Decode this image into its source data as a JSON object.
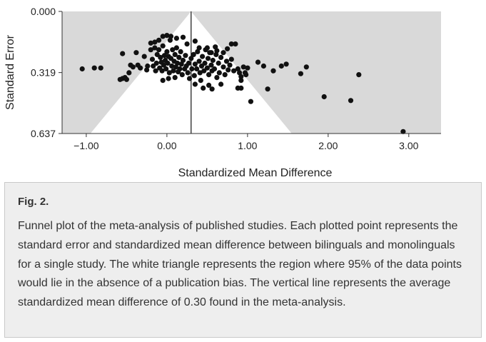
{
  "chart_data": {
    "type": "scatter",
    "subtype": "funnel-plot",
    "xlabel": "Standardized Mean Difference",
    "ylabel": "Standard Error",
    "xlim": [
      -1.3,
      3.4
    ],
    "ylim": [
      0.0,
      0.637
    ],
    "y_inverted": true,
    "x_ticks": [
      "−1.00",
      "0.00",
      "1.00",
      "2.00",
      "3.00"
    ],
    "x_tick_values": [
      -1.0,
      0.0,
      1.0,
      2.0,
      3.0
    ],
    "y_ticks": [
      "0.000",
      "0.319",
      "0.637"
    ],
    "y_tick_values": [
      0.0,
      0.319,
      0.637
    ],
    "mean_difference": 0.3,
    "funnel_multiplier": 1.96,
    "colors": {
      "background": "#d9d9d9",
      "funnel": "#ffffff",
      "points": "#111111",
      "axis": "#333333"
    },
    "points": [
      {
        "x": -1.05,
        "y": 0.3
      },
      {
        "x": -0.9,
        "y": 0.295
      },
      {
        "x": -0.82,
        "y": 0.295
      },
      {
        "x": -0.58,
        "y": 0.355
      },
      {
        "x": -0.55,
        "y": 0.35
      },
      {
        "x": -0.52,
        "y": 0.345
      },
      {
        "x": -0.55,
        "y": 0.22
      },
      {
        "x": -0.38,
        "y": 0.215
      },
      {
        "x": -0.45,
        "y": 0.28
      },
      {
        "x": -0.42,
        "y": 0.29
      },
      {
        "x": -0.36,
        "y": 0.28
      },
      {
        "x": -0.33,
        "y": 0.295
      },
      {
        "x": -0.28,
        "y": 0.235
      },
      {
        "x": -0.25,
        "y": 0.305
      },
      {
        "x": -0.24,
        "y": 0.285
      },
      {
        "x": -0.2,
        "y": 0.2
      },
      {
        "x": -0.18,
        "y": 0.25
      },
      {
        "x": -0.17,
        "y": 0.285
      },
      {
        "x": -0.15,
        "y": 0.19
      },
      {
        "x": -0.14,
        "y": 0.31
      },
      {
        "x": -0.13,
        "y": 0.27
      },
      {
        "x": -0.12,
        "y": 0.225
      },
      {
        "x": -0.1,
        "y": 0.2
      },
      {
        "x": -0.09,
        "y": 0.295
      },
      {
        "x": -0.08,
        "y": 0.24
      },
      {
        "x": -0.07,
        "y": 0.265
      },
      {
        "x": -0.06,
        "y": 0.31
      },
      {
        "x": -0.05,
        "y": 0.18
      },
      {
        "x": -0.04,
        "y": 0.28
      },
      {
        "x": -0.03,
        "y": 0.23
      },
      {
        "x": -0.02,
        "y": 0.255
      },
      {
        "x": -0.01,
        "y": 0.3
      },
      {
        "x": 0.0,
        "y": 0.21
      },
      {
        "x": 0.01,
        "y": 0.27
      },
      {
        "x": 0.02,
        "y": 0.235
      },
      {
        "x": 0.03,
        "y": 0.32
      },
      {
        "x": 0.04,
        "y": 0.15
      },
      {
        "x": 0.05,
        "y": 0.245
      },
      {
        "x": 0.06,
        "y": 0.285
      },
      {
        "x": 0.07,
        "y": 0.2
      },
      {
        "x": 0.08,
        "y": 0.31
      },
      {
        "x": 0.09,
        "y": 0.26
      },
      {
        "x": 0.1,
        "y": 0.225
      },
      {
        "x": 0.11,
        "y": 0.29
      },
      {
        "x": 0.12,
        "y": 0.19
      },
      {
        "x": 0.13,
        "y": 0.27
      },
      {
        "x": 0.14,
        "y": 0.315
      },
      {
        "x": 0.15,
        "y": 0.24
      },
      {
        "x": 0.16,
        "y": 0.3
      },
      {
        "x": 0.17,
        "y": 0.21
      },
      {
        "x": 0.18,
        "y": 0.275
      },
      {
        "x": 0.19,
        "y": 0.33
      },
      {
        "x": 0.2,
        "y": 0.255
      },
      {
        "x": 0.22,
        "y": 0.3
      },
      {
        "x": 0.23,
        "y": 0.23
      },
      {
        "x": 0.24,
        "y": 0.285
      },
      {
        "x": 0.26,
        "y": 0.32
      },
      {
        "x": 0.27,
        "y": 0.27
      },
      {
        "x": 0.28,
        "y": 0.35
      },
      {
        "x": 0.3,
        "y": 0.245
      },
      {
        "x": 0.31,
        "y": 0.3
      },
      {
        "x": 0.33,
        "y": 0.225
      },
      {
        "x": 0.34,
        "y": 0.335
      },
      {
        "x": 0.35,
        "y": 0.275
      },
      {
        "x": 0.37,
        "y": 0.3
      },
      {
        "x": 0.38,
        "y": 0.21
      },
      {
        "x": 0.4,
        "y": 0.26
      },
      {
        "x": 0.41,
        "y": 0.32
      },
      {
        "x": 0.42,
        "y": 0.36
      },
      {
        "x": 0.43,
        "y": 0.285
      },
      {
        "x": 0.44,
        "y": 0.235
      },
      {
        "x": 0.46,
        "y": 0.31
      },
      {
        "x": 0.47,
        "y": 0.27
      },
      {
        "x": 0.48,
        "y": 0.2
      },
      {
        "x": 0.5,
        "y": 0.295
      },
      {
        "x": 0.51,
        "y": 0.245
      },
      {
        "x": 0.52,
        "y": 0.33
      },
      {
        "x": 0.53,
        "y": 0.215
      },
      {
        "x": 0.55,
        "y": 0.28
      },
      {
        "x": 0.56,
        "y": 0.31
      },
      {
        "x": 0.57,
        "y": 0.255
      },
      {
        "x": 0.59,
        "y": 0.3
      },
      {
        "x": 0.61,
        "y": 0.225
      },
      {
        "x": 0.62,
        "y": 0.345
      },
      {
        "x": 0.64,
        "y": 0.27
      },
      {
        "x": 0.65,
        "y": 0.32
      },
      {
        "x": 0.67,
        "y": 0.24
      },
      {
        "x": 0.7,
        "y": 0.29
      },
      {
        "x": 0.72,
        "y": 0.33
      },
      {
        "x": 0.74,
        "y": 0.26
      },
      {
        "x": 0.76,
        "y": 0.305
      },
      {
        "x": 0.78,
        "y": 0.28
      },
      {
        "x": 0.8,
        "y": 0.25
      },
      {
        "x": 0.83,
        "y": 0.31
      },
      {
        "x": 0.88,
        "y": 0.3
      },
      {
        "x": 0.9,
        "y": 0.32
      },
      {
        "x": 0.92,
        "y": 0.36
      },
      {
        "x": 0.95,
        "y": 0.29
      },
      {
        "x": 0.98,
        "y": 0.33
      },
      {
        "x": 1.0,
        "y": 0.295
      },
      {
        "x": 1.04,
        "y": 0.47
      },
      {
        "x": -0.5,
        "y": 0.355
      },
      {
        "x": -0.47,
        "y": 0.32
      },
      {
        "x": -0.05,
        "y": 0.36
      },
      {
        "x": 0.02,
        "y": 0.35
      },
      {
        "x": 0.1,
        "y": 0.345
      },
      {
        "x": 0.35,
        "y": 0.38
      },
      {
        "x": 0.45,
        "y": 0.4
      },
      {
        "x": 0.52,
        "y": 0.385
      },
      {
        "x": 0.56,
        "y": 0.405
      },
      {
        "x": 0.67,
        "y": 0.38
      },
      {
        "x": 0.88,
        "y": 0.4
      },
      {
        "x": 0.92,
        "y": 0.4
      },
      {
        "x": 0.92,
        "y": 0.34
      },
      {
        "x": 0.97,
        "y": 0.32
      },
      {
        "x": 0.8,
        "y": 0.17
      },
      {
        "x": 0.85,
        "y": 0.17
      },
      {
        "x": 0.6,
        "y": 0.185
      },
      {
        "x": 0.2,
        "y": 0.135
      },
      {
        "x": 0.12,
        "y": 0.14
      },
      {
        "x": 0.05,
        "y": 0.13
      },
      {
        "x": 0.0,
        "y": 0.125
      },
      {
        "x": -0.05,
        "y": 0.13
      },
      {
        "x": -0.1,
        "y": 0.15
      },
      {
        "x": -0.15,
        "y": 0.16
      },
      {
        "x": -0.2,
        "y": 0.165
      },
      {
        "x": 0.25,
        "y": 0.17
      },
      {
        "x": 0.35,
        "y": 0.155
      },
      {
        "x": 0.4,
        "y": 0.19
      },
      {
        "x": 0.5,
        "y": 0.19
      },
      {
        "x": 0.55,
        "y": 0.215
      },
      {
        "x": 0.62,
        "y": 0.205
      },
      {
        "x": 0.7,
        "y": 0.215
      },
      {
        "x": 0.75,
        "y": 0.195
      },
      {
        "x": 1.13,
        "y": 0.265
      },
      {
        "x": 1.2,
        "y": 0.285
      },
      {
        "x": 1.32,
        "y": 0.31
      },
      {
        "x": 1.42,
        "y": 0.285
      },
      {
        "x": 1.48,
        "y": 0.275
      },
      {
        "x": 1.25,
        "y": 0.405
      },
      {
        "x": 1.66,
        "y": 0.325
      },
      {
        "x": 1.73,
        "y": 0.29
      },
      {
        "x": 1.95,
        "y": 0.445
      },
      {
        "x": 2.28,
        "y": 0.465
      },
      {
        "x": 2.38,
        "y": 0.33
      },
      {
        "x": 2.93,
        "y": 0.627
      }
    ]
  },
  "caption": {
    "title": "Fig. 2.",
    "text": "Funnel plot of the meta-analysis of published studies. Each plotted point represents the standard error and standardized mean difference between bilinguals and monolinguals for a single study. The white triangle represents the region where 95% of the data points would lie in the absence of a publication bias. The vertical line represents the average standardized mean difference of 0.30 found in the meta-analysis."
  }
}
